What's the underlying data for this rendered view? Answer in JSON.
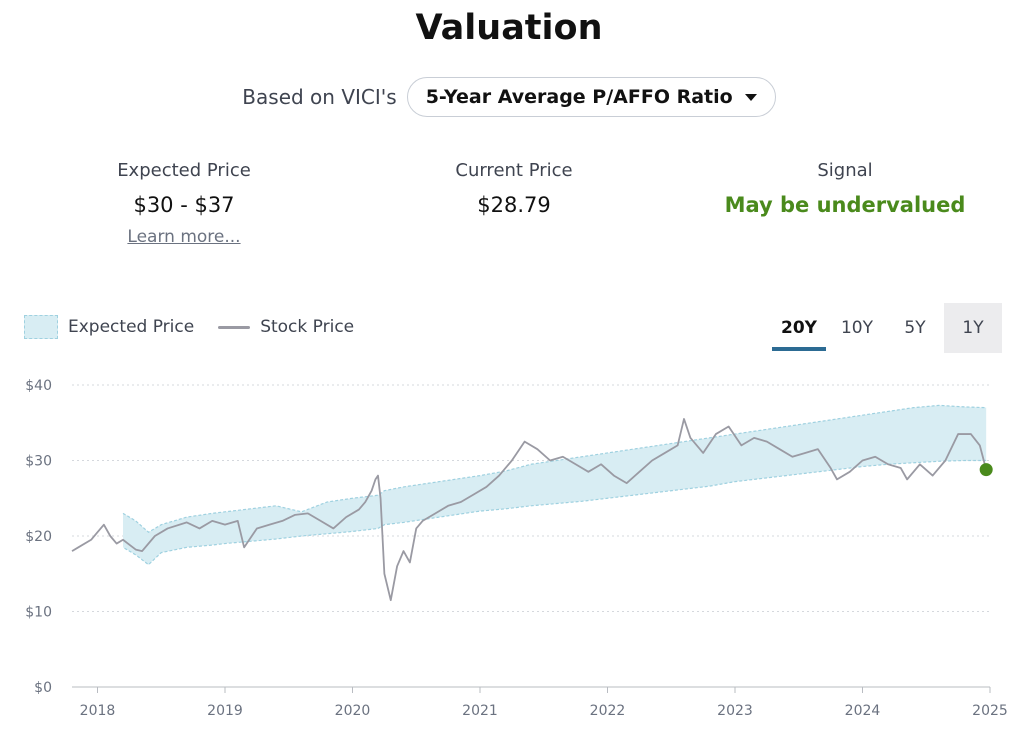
{
  "header": {
    "title": "Valuation",
    "basis_prefix": "Based on VICI's",
    "basis_selected": "5-Year Average P/AFFO Ratio"
  },
  "metrics": {
    "expected": {
      "label": "Expected Price",
      "value": "$30 - $37",
      "link": "Learn more..."
    },
    "current": {
      "label": "Current Price",
      "value": "$28.79"
    },
    "signal": {
      "label": "Signal",
      "value": "May be undervalued"
    }
  },
  "legend": {
    "expected": "Expected Price",
    "stock": "Stock Price"
  },
  "range_tabs": [
    "20Y",
    "10Y",
    "5Y",
    "1Y"
  ],
  "active_range": "20Y",
  "colors": {
    "band_fill": "#d8edf3",
    "band_edge": "#9fd1e0",
    "stock_line": "#9a9aa3",
    "signal_green": "#4a8a1c",
    "current_dot": "#4a8a1c",
    "active_tab_underline": "#2c6b93"
  },
  "chart_data": {
    "type": "line",
    "ylim": [
      0,
      40
    ],
    "y_ticks": [
      "$0",
      "$10",
      "$20",
      "$30",
      "$40"
    ],
    "y_tick_values": [
      0,
      10,
      20,
      30,
      40
    ],
    "xlim": [
      2017.8,
      2025.0
    ],
    "x_ticks": [
      "2018",
      "2019",
      "2020",
      "2021",
      "2022",
      "2023",
      "2024",
      "2025"
    ],
    "x_tick_values": [
      2018,
      2019,
      2020,
      2021,
      2022,
      2023,
      2024,
      2025
    ],
    "grid": true,
    "legend_position": "top-left",
    "series": [
      {
        "name": "Expected Price",
        "type": "band",
        "x": [
          2018.2,
          2018.3,
          2018.4,
          2018.5,
          2018.7,
          2018.9,
          2019.0,
          2019.2,
          2019.4,
          2019.6,
          2019.8,
          2020.0,
          2020.2,
          2020.25,
          2020.4,
          2020.6,
          2020.8,
          2021.0,
          2021.2,
          2021.4,
          2021.6,
          2021.8,
          2022.0,
          2022.2,
          2022.4,
          2022.6,
          2022.8,
          2023.0,
          2023.2,
          2023.4,
          2023.6,
          2023.8,
          2024.0,
          2024.2,
          2024.4,
          2024.6,
          2024.8,
          2024.97
        ],
        "low": [
          18.5,
          17.5,
          16.2,
          17.8,
          18.5,
          18.8,
          19.0,
          19.3,
          19.6,
          20.0,
          20.3,
          20.6,
          21.0,
          21.5,
          21.8,
          22.3,
          22.8,
          23.3,
          23.6,
          24.0,
          24.3,
          24.6,
          25.0,
          25.4,
          25.8,
          26.2,
          26.6,
          27.2,
          27.6,
          28.0,
          28.4,
          28.8,
          29.2,
          29.5,
          29.7,
          29.9,
          30.0,
          30.0
        ],
        "high": [
          23.0,
          22.0,
          20.5,
          21.5,
          22.5,
          23.0,
          23.2,
          23.6,
          24.0,
          23.2,
          24.5,
          25.0,
          25.4,
          26.0,
          26.5,
          27.0,
          27.5,
          28.0,
          28.6,
          29.5,
          30.0,
          30.5,
          31.0,
          31.5,
          32.0,
          32.5,
          33.0,
          33.5,
          34.0,
          34.5,
          35.0,
          35.5,
          36.0,
          36.5,
          37.0,
          37.3,
          37.1,
          37.0
        ]
      },
      {
        "name": "Stock Price",
        "type": "line",
        "x": [
          2017.8,
          2017.85,
          2017.95,
          2018.0,
          2018.05,
          2018.1,
          2018.15,
          2018.2,
          2018.3,
          2018.35,
          2018.45,
          2018.55,
          2018.7,
          2018.8,
          2018.9,
          2019.0,
          2019.1,
          2019.15,
          2019.25,
          2019.35,
          2019.45,
          2019.55,
          2019.65,
          2019.75,
          2019.85,
          2019.95,
          2020.05,
          2020.1,
          2020.15,
          2020.18,
          2020.2,
          2020.22,
          2020.25,
          2020.3,
          2020.35,
          2020.4,
          2020.45,
          2020.5,
          2020.55,
          2020.65,
          2020.75,
          2020.85,
          2020.95,
          2021.05,
          2021.15,
          2021.25,
          2021.35,
          2021.45,
          2021.55,
          2021.65,
          2021.75,
          2021.85,
          2021.95,
          2022.05,
          2022.15,
          2022.25,
          2022.35,
          2022.45,
          2022.55,
          2022.6,
          2022.65,
          2022.75,
          2022.85,
          2022.95,
          2023.05,
          2023.15,
          2023.25,
          2023.35,
          2023.45,
          2023.55,
          2023.65,
          2023.75,
          2023.8,
          2023.9,
          2024.0,
          2024.1,
          2024.2,
          2024.3,
          2024.35,
          2024.45,
          2024.55,
          2024.65,
          2024.75,
          2024.85,
          2024.92,
          2024.97
        ],
        "y": [
          18.0,
          18.5,
          19.5,
          20.5,
          21.5,
          20.0,
          19.0,
          19.5,
          18.2,
          18.0,
          20.0,
          21.0,
          21.8,
          21.0,
          22.0,
          21.5,
          22.0,
          18.5,
          21.0,
          21.5,
          22.0,
          22.8,
          23.0,
          22.0,
          21.0,
          22.5,
          23.5,
          24.5,
          26.0,
          27.5,
          28.0,
          25.0,
          15.0,
          11.5,
          16.0,
          18.0,
          16.5,
          21.0,
          22.0,
          23.0,
          24.0,
          24.5,
          25.5,
          26.5,
          28.0,
          30.0,
          32.5,
          31.5,
          30.0,
          30.5,
          29.5,
          28.5,
          29.5,
          28.0,
          27.0,
          28.5,
          30.0,
          31.0,
          32.0,
          35.5,
          33.0,
          31.0,
          33.5,
          34.5,
          32.0,
          33.0,
          32.5,
          31.5,
          30.5,
          31.0,
          31.5,
          29.0,
          27.5,
          28.5,
          30.0,
          30.5,
          29.5,
          29.0,
          27.5,
          29.5,
          28.0,
          30.0,
          33.5,
          33.5,
          32.0,
          28.79
        ]
      }
    ],
    "current_point": {
      "x": 2024.97,
      "y": 28.79
    }
  }
}
